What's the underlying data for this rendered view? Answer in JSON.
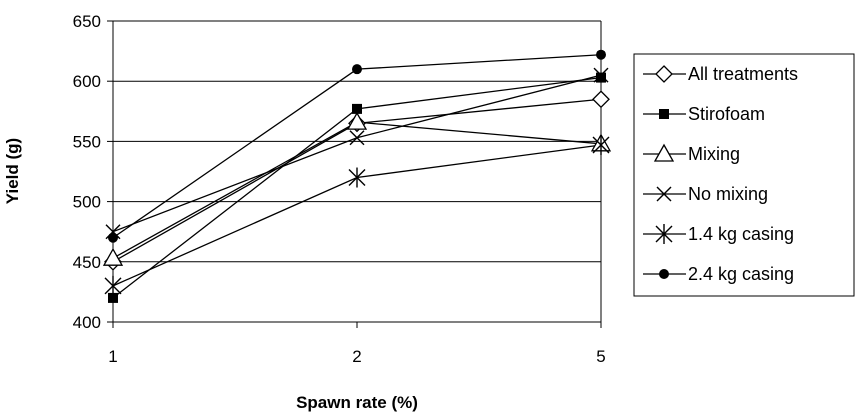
{
  "chart_data": {
    "type": "line",
    "title": "",
    "xlabel": "Spawn rate (%)",
    "ylabel": "Yield (g)",
    "categories": [
      "1",
      "2",
      "5"
    ],
    "ylim": [
      400,
      650
    ],
    "yticks": [
      400,
      450,
      500,
      550,
      600,
      650
    ],
    "grid": "horizontal",
    "legend_position": "right",
    "series": [
      {
        "name": "All treatments",
        "marker": "diamond-open",
        "values": [
          450,
          565,
          585
        ]
      },
      {
        "name": "Stirofoam",
        "marker": "square-filled",
        "values": [
          420,
          577,
          603
        ]
      },
      {
        "name": "Mixing",
        "marker": "triangle-open",
        "values": [
          453,
          566,
          548
        ]
      },
      {
        "name": "No mixing",
        "marker": "x",
        "values": [
          475,
          553,
          605
        ]
      },
      {
        "name": "1.4 kg casing",
        "marker": "asterisk",
        "values": [
          430,
          520,
          547
        ]
      },
      {
        "name": "2.4 kg casing",
        "marker": "circle-filled",
        "values": [
          470,
          610,
          622
        ]
      }
    ]
  }
}
